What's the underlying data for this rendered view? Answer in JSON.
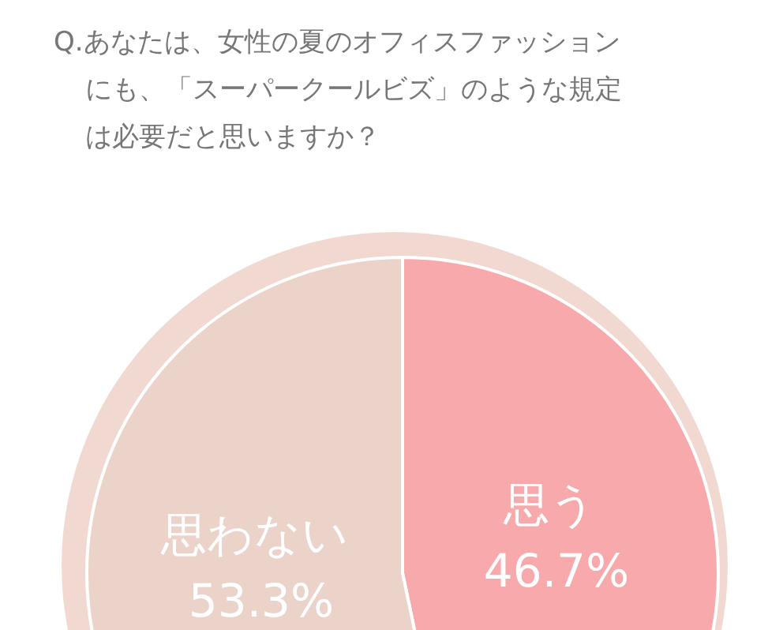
{
  "chart_data": {
    "type": "pie",
    "title": "Q.あなたは、女性の夏のオフィスファッションにも、「スーパークールビズ」のような規定は必要だと思いますか？",
    "categories": [
      "思う",
      "思わない"
    ],
    "values": [
      46.7,
      53.3
    ],
    "value_labels": [
      "46.7%",
      "53.3%"
    ],
    "colors": [
      "#f8a9ab",
      "#ecd3ca"
    ]
  }
}
